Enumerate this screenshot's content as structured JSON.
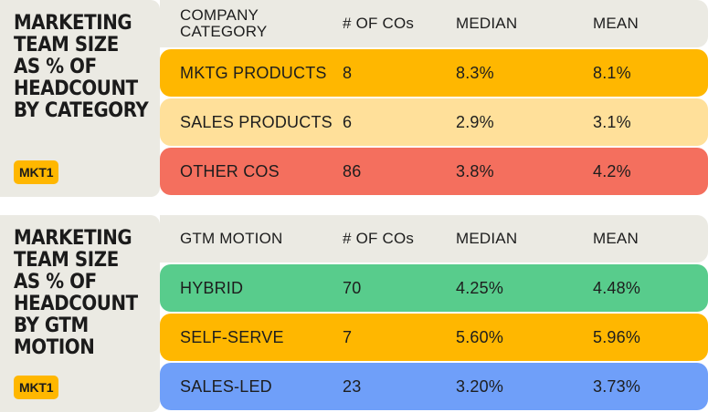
{
  "chart_data": [
    {
      "type": "table",
      "title": "MARKETING TEAM SIZE AS % OF HEADCOUNT BY CATEGORY",
      "badge": "MKT1",
      "columns": [
        "COMPANY CATEGORY",
        "# OF COs",
        "MEDIAN",
        "MEAN"
      ],
      "rows": [
        {
          "label": "MKTG PRODUCTS",
          "count": "8",
          "median": "8.3%",
          "mean": "8.1%",
          "color": "#ffb700"
        },
        {
          "label": "SALES PRODUCTS",
          "count": "6",
          "median": "2.9%",
          "mean": "3.1%",
          "color": "#ffe09a"
        },
        {
          "label": "OTHER COS",
          "count": "86",
          "median": "3.8%",
          "mean": "4.2%",
          "color": "#f46f5e"
        }
      ]
    },
    {
      "type": "table",
      "title": "MARKETING TEAM SIZE AS % OF HEADCOUNT BY GTM MOTION",
      "badge": "MKT1",
      "columns": [
        "GTM MOTION",
        "# OF COs",
        "MEDIAN",
        "MEAN"
      ],
      "rows": [
        {
          "label": "HYBRID",
          "count": "70",
          "median": "4.25%",
          "mean": "4.48%",
          "color": "#58cc8c"
        },
        {
          "label": "SELF-SERVE",
          "count": "7",
          "median": "5.60%",
          "mean": "5.96%",
          "color": "#ffb700"
        },
        {
          "label": "SALES-LED",
          "count": "23",
          "median": "3.20%",
          "mean": "3.73%",
          "color": "#6f9ff9"
        }
      ]
    }
  ],
  "colors": {
    "panel_bg": "#ebeae3",
    "badge_bg": "#ffb700",
    "text": "#1d1d1d"
  }
}
